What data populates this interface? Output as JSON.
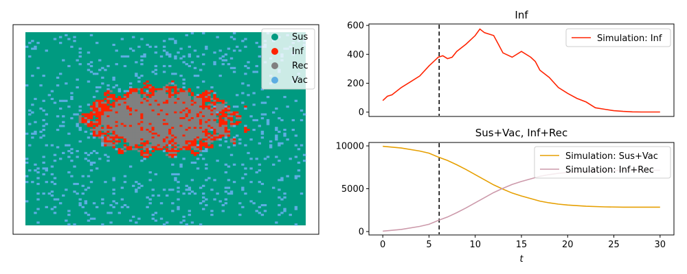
{
  "colors": {
    "sus": "#009a80",
    "inf": "#ff2200",
    "rec": "#808080",
    "vac": "#5dade2",
    "sus_vac": "#e69f00",
    "inf_rec": "#cc99aa",
    "event_line": "#000000"
  },
  "chart_data": [
    {
      "type": "scatter",
      "title": "",
      "grid": false,
      "axes_ticks": false,
      "lattice_size": [
        100,
        100
      ],
      "legend": {
        "placement": "top-right",
        "entries": [
          "Sus",
          "Inf",
          "Rec",
          "Vac"
        ]
      },
      "category_counts_approx": {
        "Sus": 8400,
        "Inf": 500,
        "Rec": 1000,
        "Vac": 800
      },
      "outbreak_center_approx": [
        48,
        45
      ]
    },
    {
      "type": "line",
      "title": "Inf",
      "xlabel": "",
      "ylabel": "",
      "xlim": [
        -1.5,
        31.5
      ],
      "ylim": [
        -30,
        610
      ],
      "yticks": [
        0,
        200,
        400,
        600
      ],
      "show_xticks": false,
      "vline_x": 6.1,
      "legend": {
        "placement": "top-right"
      },
      "series": [
        {
          "name": "Simulation: Inf",
          "x": [
            0,
            0.5,
            1,
            2,
            3,
            4,
            5,
            6,
            6.5,
            7,
            7.5,
            8,
            9,
            10,
            10.5,
            11,
            12,
            12.5,
            13,
            14,
            15,
            16,
            16.5,
            17,
            18,
            19,
            20,
            21,
            22,
            23,
            24,
            25,
            26,
            27,
            28,
            29,
            30
          ],
          "y": [
            80,
            110,
            120,
            170,
            210,
            250,
            320,
            380,
            390,
            370,
            380,
            420,
            470,
            530,
            575,
            550,
            530,
            470,
            410,
            380,
            420,
            380,
            350,
            290,
            240,
            170,
            130,
            95,
            70,
            30,
            20,
            10,
            5,
            2,
            1,
            1,
            1
          ]
        }
      ]
    },
    {
      "type": "line",
      "title": "Sus+Vac, Inf+Rec",
      "xlabel": "t",
      "ylabel": "",
      "xlim": [
        -1.5,
        31.5
      ],
      "ylim": [
        -400,
        10400
      ],
      "xticks": [
        0,
        5,
        10,
        15,
        20,
        25,
        30
      ],
      "yticks": [
        0,
        5000,
        10000
      ],
      "vline_x": 6.1,
      "legend": {
        "placement": "top-right"
      },
      "series": [
        {
          "name": "Simulation: Sus+Vac",
          "x": [
            0,
            2,
            4,
            5,
            6,
            7,
            8,
            9,
            10,
            11,
            12,
            13,
            14,
            15,
            16,
            17,
            18,
            19,
            20,
            22,
            24,
            26,
            28,
            30
          ],
          "y": [
            9950,
            9750,
            9400,
            9150,
            8700,
            8300,
            7800,
            7250,
            6650,
            6050,
            5450,
            4950,
            4500,
            4150,
            3850,
            3550,
            3350,
            3200,
            3100,
            2950,
            2880,
            2850,
            2850,
            2850
          ]
        },
        {
          "name": "Simulation: Inf+Rec",
          "x": [
            0,
            2,
            4,
            5,
            6,
            7,
            8,
            9,
            10,
            11,
            12,
            13,
            14,
            15,
            16,
            17,
            18,
            19,
            20,
            22,
            24,
            26,
            28,
            30
          ],
          "y": [
            50,
            250,
            600,
            850,
            1300,
            1700,
            2200,
            2750,
            3350,
            3950,
            4550,
            5050,
            5500,
            5850,
            6150,
            6450,
            6650,
            6800,
            6900,
            7050,
            7120,
            7150,
            7150,
            7150
          ]
        }
      ]
    }
  ]
}
